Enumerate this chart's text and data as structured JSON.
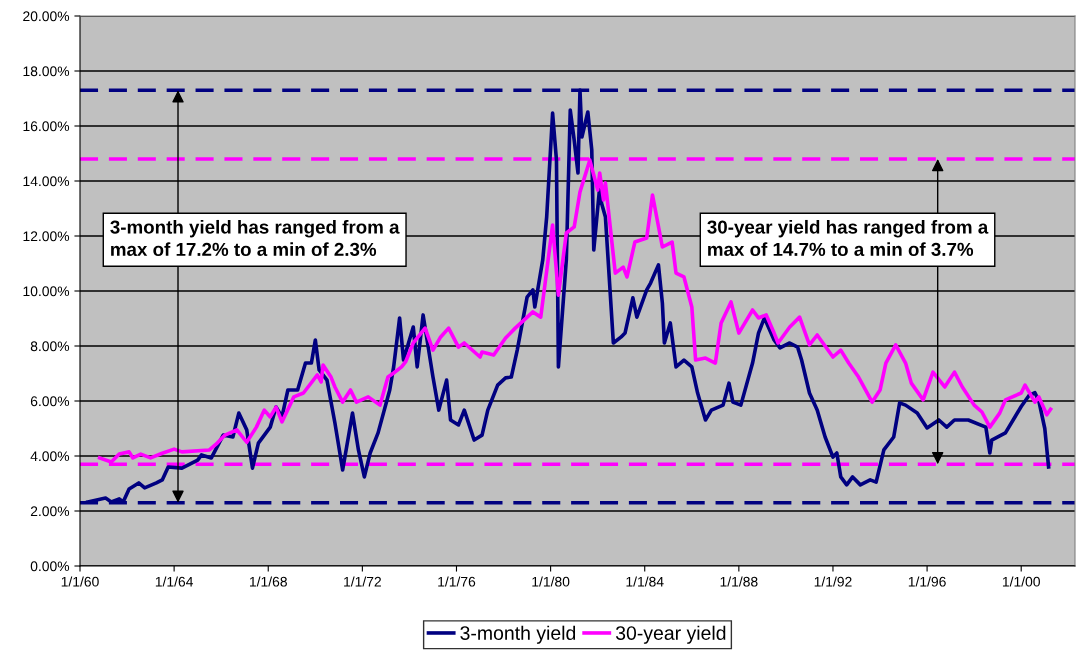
{
  "chart_data": {
    "type": "line",
    "xlim": [
      "1960-01-01",
      "2002-04-15"
    ],
    "xticks": [
      {
        "value": "1960-01-01",
        "label": "1/1/60"
      },
      {
        "value": "1964-01-01",
        "label": "1/1/64"
      },
      {
        "value": "1968-01-01",
        "label": "1/1/68"
      },
      {
        "value": "1972-01-01",
        "label": "1/1/72"
      },
      {
        "value": "1976-01-01",
        "label": "1/1/76"
      },
      {
        "value": "1980-01-01",
        "label": "1/1/80"
      },
      {
        "value": "1984-01-01",
        "label": "1/1/84"
      },
      {
        "value": "1988-01-01",
        "label": "1/1/88"
      },
      {
        "value": "1992-01-01",
        "label": "1/1/92"
      },
      {
        "value": "1996-01-01",
        "label": "1/1/96"
      },
      {
        "value": "2000-01-01",
        "label": "1/1/00"
      }
    ],
    "ylim": [
      0,
      20
    ],
    "yticks": [
      {
        "value": 0,
        "label": "0.00%"
      },
      {
        "value": 2,
        "label": "2.00%"
      },
      {
        "value": 4,
        "label": "4.00%"
      },
      {
        "value": 6,
        "label": "6.00%"
      },
      {
        "value": 8,
        "label": "8.00%"
      },
      {
        "value": 10,
        "label": "10.00%"
      },
      {
        "value": 12,
        "label": "12.00%"
      },
      {
        "value": 14,
        "label": "14.00%"
      },
      {
        "value": 16,
        "label": "16.00%"
      },
      {
        "value": 18,
        "label": "18.00%"
      },
      {
        "value": 20,
        "label": "20.00%"
      }
    ],
    "grid": "y",
    "legend": "bottom",
    "marker": "none",
    "line_style": "solid",
    "series": [
      {
        "name": "3-month yield",
        "color": "#000080",
        "x": [
          "1960-05",
          "1961-02",
          "1961-05",
          "1961-09",
          "1961-11",
          "1962-02",
          "1962-07",
          "1962-10",
          "1963-04",
          "1963-07",
          "1963-10",
          "1964-05",
          "1965-01",
          "1965-03",
          "1965-08",
          "1966-02",
          "1966-07",
          "1966-10",
          "1967-02",
          "1967-05",
          "1967-08",
          "1968-02",
          "1968-05",
          "1968-08",
          "1968-11",
          "1969-04",
          "1969-08",
          "1969-11",
          "1970-01",
          "1970-03",
          "1970-07",
          "1970-11",
          "1971-03",
          "1971-08",
          "1971-11",
          "1972-02",
          "1972-05",
          "1972-09",
          "1973-03",
          "1973-05",
          "1973-08",
          "1973-10",
          "1974-03",
          "1974-05",
          "1974-08",
          "1975-01",
          "1975-04",
          "1975-08",
          "1975-10",
          "1976-02",
          "1976-05",
          "1976-10",
          "1977-02",
          "1977-05",
          "1977-10",
          "1978-02",
          "1978-05",
          "1978-08",
          "1979-01",
          "1979-04",
          "1979-05",
          "1979-09",
          "1979-11",
          "1980-02",
          "1980-04",
          "1980-05",
          "1980-09",
          "1980-11",
          "1981-01",
          "1981-03",
          "1981-04",
          "1981-05",
          "1981-08",
          "1981-10",
          "1981-11",
          "1982-02",
          "1982-03",
          "1982-05",
          "1982-09",
          "1983-01",
          "1983-03",
          "1983-07",
          "1983-09",
          "1984-02",
          "1984-04",
          "1984-08",
          "1984-10",
          "1984-11",
          "1985-02",
          "1985-05",
          "1985-09",
          "1986-01",
          "1986-04",
          "1986-08",
          "1986-11",
          "1987-05",
          "1987-08",
          "1987-10",
          "1988-02",
          "1988-08",
          "1988-11",
          "1989-02",
          "1989-07",
          "1989-10",
          "1990-03",
          "1990-07",
          "1990-09",
          "1991-01",
          "1991-05",
          "1991-09",
          "1992-01",
          "1992-03",
          "1992-05",
          "1992-08",
          "1992-11",
          "1993-03",
          "1993-08",
          "1993-11",
          "1994-03",
          "1994-08",
          "1994-11",
          "1995-02",
          "1995-08",
          "1996-01",
          "1996-07",
          "1996-11",
          "1997-03",
          "1997-10",
          "1998-07",
          "1998-09",
          "1998-10",
          "1999-05",
          "2000-01",
          "2000-05",
          "2000-08",
          "2000-10",
          "2001-01",
          "2001-03"
        ],
        "values": [
          2.33,
          2.47,
          2.33,
          2.44,
          2.33,
          2.8,
          3.02,
          2.84,
          3.02,
          3.13,
          3.6,
          3.56,
          3.85,
          4.04,
          3.93,
          4.76,
          4.69,
          5.56,
          4.95,
          3.56,
          4.47,
          5.05,
          5.78,
          5.42,
          6.4,
          6.4,
          7.38,
          7.38,
          8.22,
          7.13,
          6.76,
          5.2,
          3.49,
          5.56,
          4.22,
          3.24,
          4.11,
          4.84,
          6.4,
          7.24,
          9.02,
          7.49,
          8.69,
          7.24,
          9.13,
          6.87,
          5.67,
          6.76,
          5.31,
          5.13,
          5.67,
          4.58,
          4.76,
          5.67,
          6.58,
          6.84,
          6.87,
          7.85,
          9.78,
          10.04,
          9.42,
          11.13,
          12.69,
          16.47,
          14.76,
          7.24,
          11.13,
          16.58,
          15.49,
          14.29,
          17.31,
          15.6,
          16.51,
          15.13,
          11.49,
          13.78,
          13.2,
          12.69,
          8.11,
          8.33,
          8.47,
          9.75,
          9.05,
          10.04,
          10.29,
          10.95,
          9.56,
          8.11,
          8.84,
          7.24,
          7.49,
          7.24,
          6.29,
          5.31,
          5.67,
          5.85,
          6.65,
          5.96,
          5.85,
          7.38,
          8.47,
          9.02,
          8.22,
          7.93,
          8.11,
          7.96,
          7.49,
          6.29,
          5.67,
          4.69,
          3.96,
          4.11,
          3.24,
          2.95,
          3.24,
          2.95,
          3.13,
          3.05,
          4.22,
          4.69,
          5.93,
          5.85,
          5.56,
          5.02,
          5.31,
          5.05,
          5.31,
          5.31,
          5.05,
          4.11,
          4.58,
          4.84,
          5.8,
          6.2,
          6.3,
          6.0,
          5.0,
          3.6
        ]
      },
      {
        "name": "30-year yield",
        "color": "#ff00ff",
        "x": [
          "1960-11",
          "1961-05",
          "1961-09",
          "1962-02",
          "1962-04",
          "1962-08",
          "1963-01",
          "1963-07",
          "1964-01",
          "1964-05",
          "1965-07",
          "1965-11",
          "1966-03",
          "1966-09",
          "1967-02",
          "1967-07",
          "1967-11",
          "1968-02",
          "1968-05",
          "1968-08",
          "1969-02",
          "1969-07",
          "1970-02",
          "1970-04",
          "1970-05",
          "1970-09",
          "1970-11",
          "1971-03",
          "1971-07",
          "1971-10",
          "1972-04",
          "1972-10",
          "1973-02",
          "1973-05",
          "1973-09",
          "1973-11",
          "1974-03",
          "1974-09",
          "1975-01",
          "1975-05",
          "1975-09",
          "1976-02",
          "1976-05",
          "1977-01",
          "1977-02",
          "1977-08",
          "1978-02",
          "1978-07",
          "1979-04",
          "1979-08",
          "1980-02",
          "1980-05",
          "1980-09",
          "1981-01",
          "1981-04",
          "1981-09",
          "1982-01",
          "1982-02",
          "1982-04",
          "1982-05",
          "1982-10",
          "1983-02",
          "1983-04",
          "1983-08",
          "1984-02",
          "1984-05",
          "1984-10",
          "1985-03",
          "1985-05",
          "1985-09",
          "1986-01",
          "1986-03",
          "1986-08",
          "1987-01",
          "1987-04",
          "1987-09",
          "1988-01",
          "1988-08",
          "1988-11",
          "1989-03",
          "1989-07",
          "1989-09",
          "1990-03",
          "1990-08",
          "1991-01",
          "1991-05",
          "1992-01",
          "1992-05",
          "1992-09",
          "1993-02",
          "1993-09",
          "1994-01",
          "1994-04",
          "1994-09",
          "1995-02",
          "1995-05",
          "1995-11",
          "1996-04",
          "1996-10",
          "1997-03",
          "1997-07",
          "1998-01",
          "1998-05",
          "1998-09",
          "1999-02",
          "1999-05",
          "2000-01",
          "2000-03",
          "2000-08",
          "2000-10",
          "2001-02",
          "2001-04"
        ],
        "values": [
          3.93,
          3.78,
          4.07,
          4.15,
          3.93,
          4.07,
          3.93,
          4.1,
          4.25,
          4.15,
          4.22,
          4.47,
          4.76,
          4.95,
          4.5,
          5.05,
          5.67,
          5.42,
          5.78,
          5.24,
          6.15,
          6.29,
          6.95,
          6.69,
          7.31,
          6.87,
          6.51,
          5.96,
          6.4,
          5.96,
          6.15,
          5.85,
          6.87,
          7.02,
          7.24,
          7.42,
          8.11,
          8.65,
          7.85,
          8.33,
          8.65,
          7.96,
          8.11,
          7.6,
          7.78,
          7.67,
          8.29,
          8.65,
          9.24,
          9.05,
          12.4,
          9.85,
          12.11,
          12.33,
          13.6,
          14.76,
          13.67,
          14.29,
          13.31,
          13.93,
          10.65,
          10.87,
          10.51,
          11.78,
          11.93,
          13.49,
          11.6,
          11.78,
          10.65,
          10.51,
          9.42,
          7.49,
          7.56,
          7.38,
          8.84,
          9.6,
          8.47,
          9.31,
          9.02,
          9.13,
          8.47,
          8.11,
          8.69,
          9.05,
          8.04,
          8.4,
          7.6,
          7.85,
          7.38,
          6.87,
          5.96,
          6.4,
          7.38,
          8.04,
          7.38,
          6.65,
          6.04,
          7.05,
          6.51,
          7.05,
          6.51,
          5.85,
          5.6,
          5.05,
          5.56,
          6.04,
          6.29,
          6.58,
          5.96,
          6.15,
          5.5,
          5.7
        ]
      }
    ],
    "ref_lines": [
      {
        "axis": "y",
        "value": 17.3,
        "color": "#000080",
        "line_style": "dashed"
      },
      {
        "axis": "y",
        "value": 2.3,
        "color": "#000080",
        "line_style": "dashed"
      },
      {
        "axis": "y",
        "value": 14.8,
        "color": "#ff00ff",
        "line_style": "dashed"
      },
      {
        "axis": "y",
        "value": 3.7,
        "color": "#ff00ff",
        "line_style": "dashed"
      }
    ],
    "annotations": [
      "3-month yield has ranged from a\nmax of 17.2% to a min of 2.3%",
      "30-year yield has ranged from a\nmax of 14.7% to a min of 3.7%"
    ]
  }
}
